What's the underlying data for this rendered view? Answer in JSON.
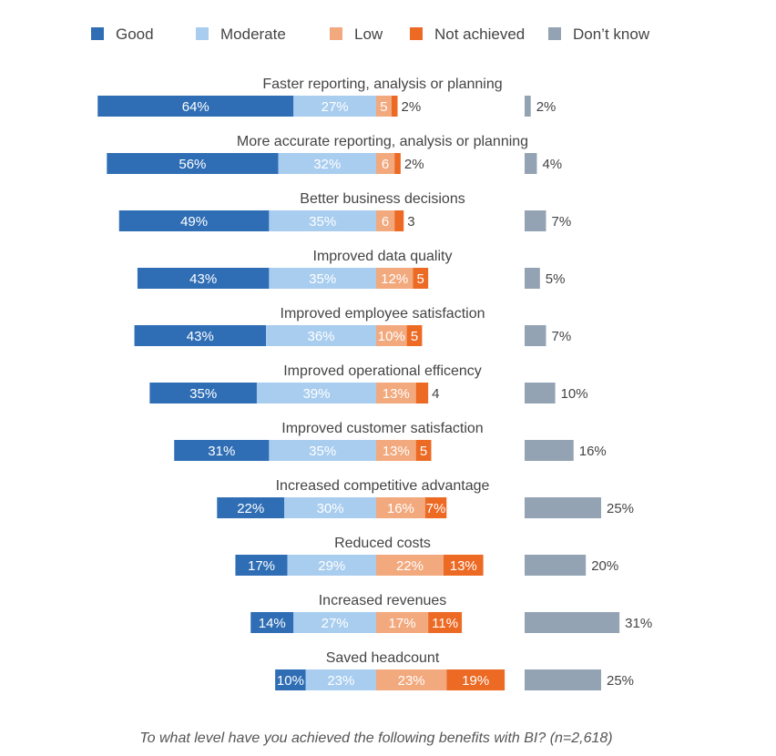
{
  "chart_data": {
    "type": "bar",
    "orientation": "horizontal-diverging-stacked",
    "caption": "To what level have you achieved the following benefits with BI? (n=2,618)",
    "legend": [
      {
        "name": "Good",
        "color": "#2f6eb5"
      },
      {
        "name": "Moderate",
        "color": "#a9cdef"
      },
      {
        "name": "Low",
        "color": "#f2a97e"
      },
      {
        "name": "Not achieved",
        "color": "#ec6a24"
      },
      {
        "name": "Don’t know",
        "color": "#94a3b3"
      }
    ],
    "categories": [
      "Faster reporting, analysis or planning",
      "More accurate reporting, analysis or planning",
      "Better business decisions",
      "Improved data quality",
      "Improved employee satisfaction",
      "Improved operational efficency",
      "Improved customer satisfaction",
      "Increased competitive advantage",
      "Reduced costs",
      "Increased revenues",
      "Saved headcount"
    ],
    "series": [
      {
        "name": "Good",
        "values": [
          64,
          56,
          49,
          43,
          43,
          35,
          31,
          22,
          17,
          14,
          10
        ],
        "labels": [
          "64%",
          "56%",
          "49%",
          "43%",
          "43%",
          "35%",
          "31%",
          "22%",
          "17%",
          "14%",
          "10%"
        ]
      },
      {
        "name": "Moderate",
        "values": [
          27,
          32,
          35,
          35,
          36,
          39,
          35,
          30,
          29,
          27,
          23
        ],
        "labels": [
          "27%",
          "32%",
          "35%",
          "35%",
          "36%",
          "39%",
          "35%",
          "30%",
          "29%",
          "27%",
          "23%"
        ]
      },
      {
        "name": "Low",
        "values": [
          5,
          6,
          6,
          12,
          10,
          13,
          13,
          16,
          22,
          17,
          23
        ],
        "labels": [
          "5",
          "6",
          "6",
          "12%",
          "10%",
          "13%",
          "13%",
          "16%",
          "22%",
          "17%",
          "23%"
        ]
      },
      {
        "name": "Not achieved",
        "values": [
          2,
          2,
          3,
          5,
          5,
          4,
          5,
          7,
          13,
          11,
          19
        ],
        "labels": [
          "2%",
          "2%",
          "3",
          "5",
          "5",
          "4",
          "5",
          "7%",
          "13%",
          "11%",
          "19%"
        ]
      },
      {
        "name": "Don’t know",
        "values": [
          2,
          4,
          7,
          5,
          7,
          10,
          16,
          25,
          20,
          31,
          25
        ],
        "labels": [
          "2%",
          "4%",
          "7%",
          "5%",
          "7%",
          "10%",
          "16%",
          "25%",
          "20%",
          "31%",
          "25%"
        ]
      }
    ]
  }
}
